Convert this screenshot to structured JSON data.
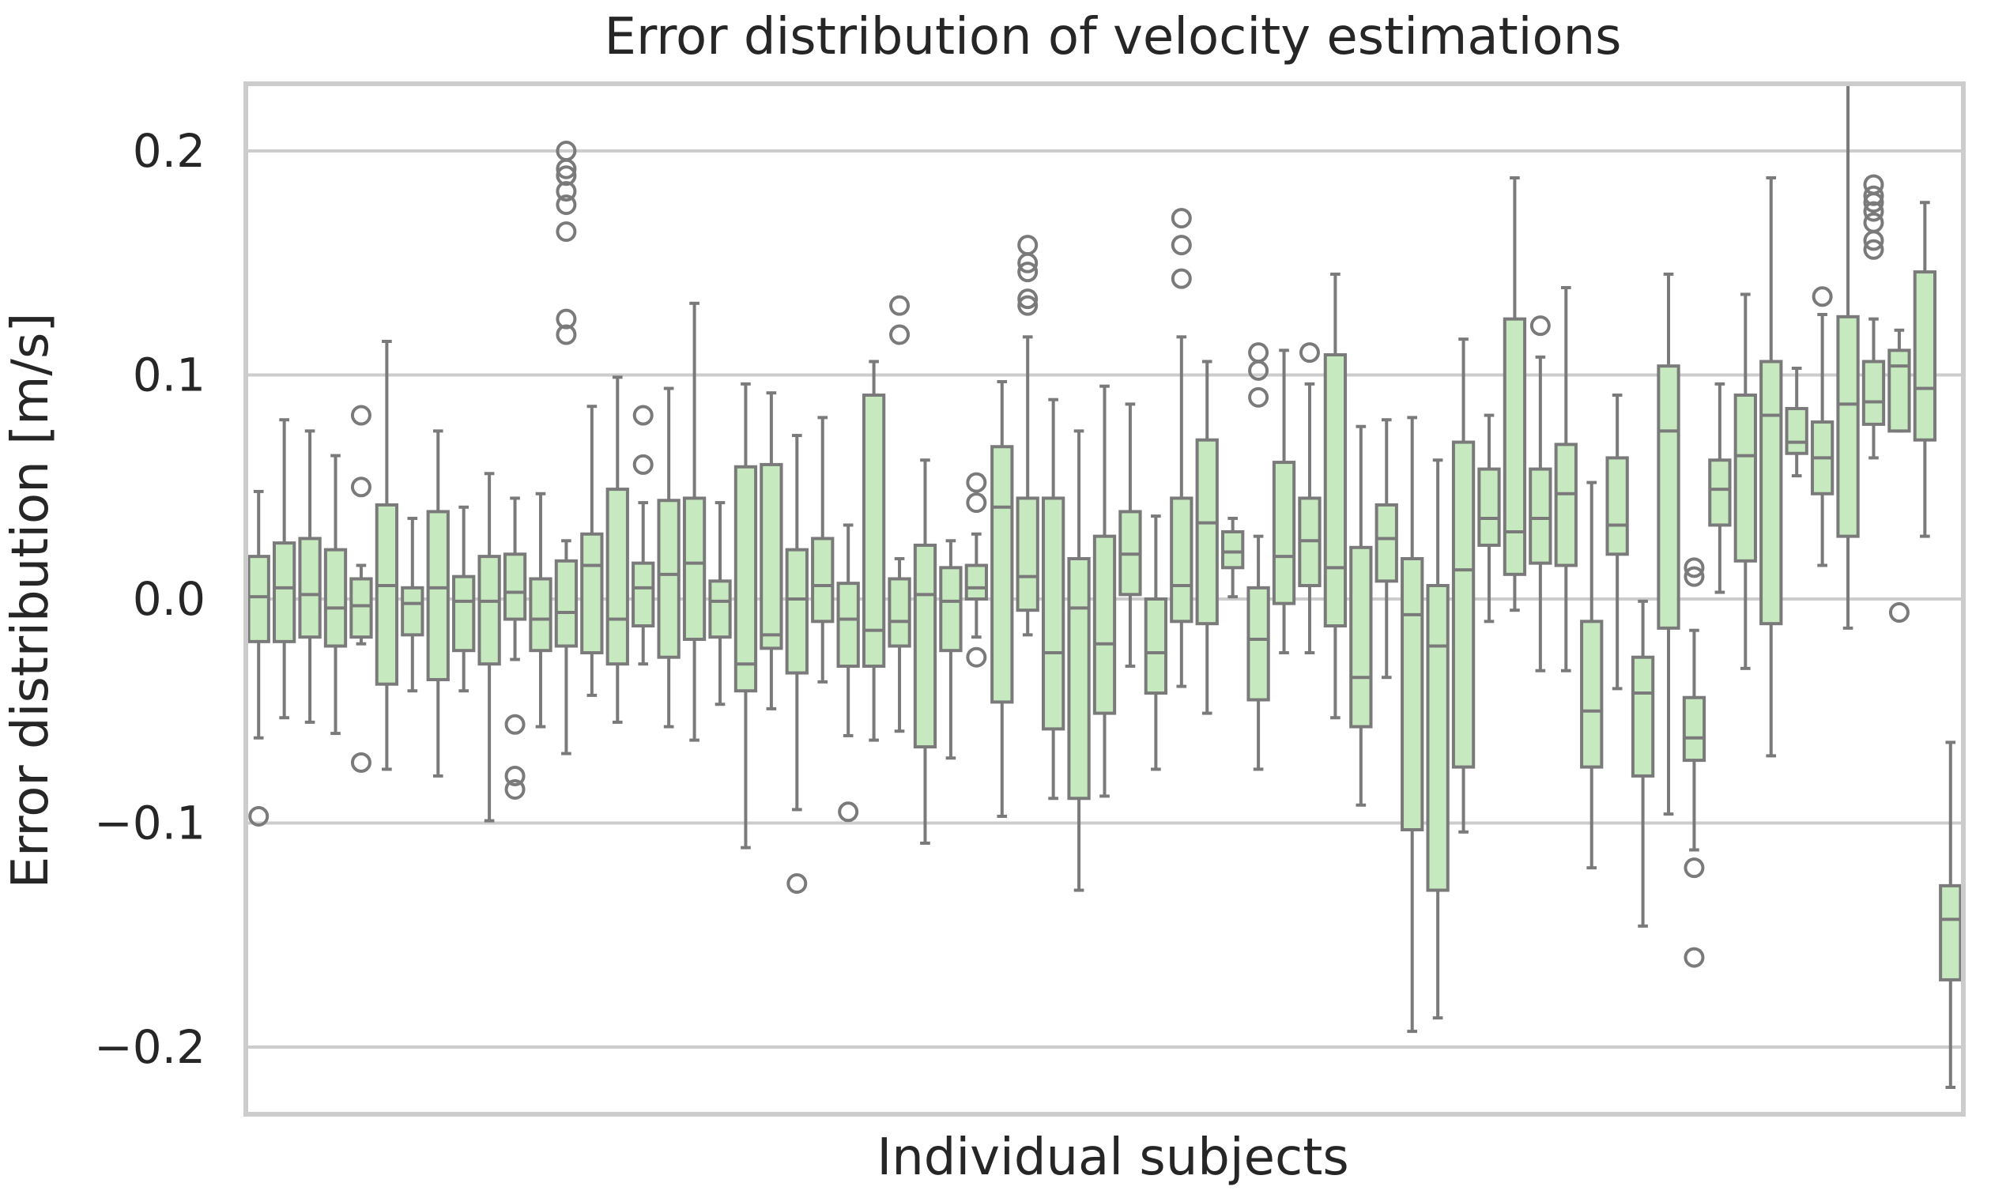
{
  "chart_data": {
    "type": "boxplot",
    "title": "Error distribution of velocity estimations",
    "xlabel": "Individual subjects",
    "ylabel": "Error distribution [m/s]",
    "ylim": [
      -0.23,
      0.23
    ],
    "yticks": [
      0.2,
      0.1,
      0.0,
      -0.1,
      -0.2
    ],
    "ytick_labels": [
      "0.2",
      "0.1",
      "0.0",
      "−0.1",
      "−0.2"
    ],
    "grid": true,
    "colors": {
      "box_fill": "#c7e9c0",
      "box_edge": "#7a7a7a",
      "grid": "#cccccc",
      "frame": "#cccccc"
    },
    "boxes": [
      {
        "wlo": -0.062,
        "q1": -0.019,
        "med": 0.001,
        "q3": 0.019,
        "whi": 0.048,
        "out": [
          -0.097
        ]
      },
      {
        "wlo": -0.053,
        "q1": -0.019,
        "med": 0.005,
        "q3": 0.025,
        "whi": 0.08,
        "out": []
      },
      {
        "wlo": -0.055,
        "q1": -0.017,
        "med": 0.002,
        "q3": 0.027,
        "whi": 0.075,
        "out": []
      },
      {
        "wlo": -0.06,
        "q1": -0.021,
        "med": -0.004,
        "q3": 0.022,
        "whi": 0.064,
        "out": []
      },
      {
        "wlo": -0.02,
        "q1": -0.017,
        "med": -0.003,
        "q3": 0.009,
        "whi": 0.015,
        "out": [
          0.082,
          0.05,
          -0.073
        ]
      },
      {
        "wlo": -0.076,
        "q1": -0.038,
        "med": 0.006,
        "q3": 0.042,
        "whi": 0.115,
        "out": []
      },
      {
        "wlo": -0.041,
        "q1": -0.016,
        "med": -0.002,
        "q3": 0.005,
        "whi": 0.036,
        "out": []
      },
      {
        "wlo": -0.079,
        "q1": -0.036,
        "med": 0.005,
        "q3": 0.039,
        "whi": 0.075,
        "out": []
      },
      {
        "wlo": -0.041,
        "q1": -0.023,
        "med": -0.001,
        "q3": 0.01,
        "whi": 0.041,
        "out": []
      },
      {
        "wlo": -0.099,
        "q1": -0.029,
        "med": -0.001,
        "q3": 0.019,
        "whi": 0.056,
        "out": []
      },
      {
        "wlo": -0.027,
        "q1": -0.009,
        "med": 0.003,
        "q3": 0.02,
        "whi": 0.045,
        "out": [
          -0.056,
          -0.079,
          -0.085
        ]
      },
      {
        "wlo": -0.057,
        "q1": -0.023,
        "med": -0.009,
        "q3": 0.009,
        "whi": 0.047,
        "out": []
      },
      {
        "wlo": -0.069,
        "q1": -0.021,
        "med": -0.006,
        "q3": 0.017,
        "whi": 0.026,
        "out": [
          0.2,
          0.192,
          0.189,
          0.182,
          0.176,
          0.164,
          0.125,
          0.118
        ]
      },
      {
        "wlo": -0.043,
        "q1": -0.024,
        "med": 0.015,
        "q3": 0.029,
        "whi": 0.086,
        "out": []
      },
      {
        "wlo": -0.055,
        "q1": -0.029,
        "med": -0.009,
        "q3": 0.049,
        "whi": 0.099,
        "out": []
      },
      {
        "wlo": -0.029,
        "q1": -0.012,
        "med": 0.005,
        "q3": 0.016,
        "whi": 0.043,
        "out": [
          0.082,
          0.06
        ]
      },
      {
        "wlo": -0.057,
        "q1": -0.026,
        "med": 0.011,
        "q3": 0.044,
        "whi": 0.094,
        "out": []
      },
      {
        "wlo": -0.063,
        "q1": -0.018,
        "med": 0.016,
        "q3": 0.045,
        "whi": 0.132,
        "out": []
      },
      {
        "wlo": -0.047,
        "q1": -0.017,
        "med": -0.001,
        "q3": 0.008,
        "whi": 0.043,
        "out": []
      },
      {
        "wlo": -0.111,
        "q1": -0.041,
        "med": -0.029,
        "q3": 0.059,
        "whi": 0.096,
        "out": []
      },
      {
        "wlo": -0.049,
        "q1": -0.022,
        "med": -0.016,
        "q3": 0.06,
        "whi": 0.092,
        "out": []
      },
      {
        "wlo": -0.094,
        "q1": -0.033,
        "med": 0.0,
        "q3": 0.022,
        "whi": 0.073,
        "out": [
          -0.127
        ]
      },
      {
        "wlo": -0.037,
        "q1": -0.01,
        "med": 0.006,
        "q3": 0.027,
        "whi": 0.081,
        "out": []
      },
      {
        "wlo": -0.061,
        "q1": -0.03,
        "med": -0.009,
        "q3": 0.007,
        "whi": 0.033,
        "out": [
          -0.095
        ]
      },
      {
        "wlo": -0.063,
        "q1": -0.03,
        "med": -0.014,
        "q3": 0.091,
        "whi": 0.106,
        "out": []
      },
      {
        "wlo": -0.059,
        "q1": -0.021,
        "med": -0.01,
        "q3": 0.009,
        "whi": 0.018,
        "out": [
          0.131,
          0.118
        ]
      },
      {
        "wlo": -0.109,
        "q1": -0.066,
        "med": 0.002,
        "q3": 0.024,
        "whi": 0.062,
        "out": []
      },
      {
        "wlo": -0.071,
        "q1": -0.023,
        "med": -0.001,
        "q3": 0.014,
        "whi": 0.026,
        "out": []
      },
      {
        "wlo": -0.017,
        "q1": 0.0,
        "med": 0.005,
        "q3": 0.015,
        "whi": 0.029,
        "out": [
          0.052,
          0.043,
          -0.026
        ]
      },
      {
        "wlo": -0.097,
        "q1": -0.046,
        "med": 0.041,
        "q3": 0.068,
        "whi": 0.097,
        "out": []
      },
      {
        "wlo": -0.016,
        "q1": -0.005,
        "med": 0.01,
        "q3": 0.045,
        "whi": 0.117,
        "out": [
          0.158,
          0.15,
          0.146,
          0.134,
          0.131
        ]
      },
      {
        "wlo": -0.089,
        "q1": -0.058,
        "med": -0.024,
        "q3": 0.045,
        "whi": 0.089,
        "out": []
      },
      {
        "wlo": -0.13,
        "q1": -0.089,
        "med": -0.004,
        "q3": 0.018,
        "whi": 0.075,
        "out": []
      },
      {
        "wlo": -0.088,
        "q1": -0.051,
        "med": -0.02,
        "q3": 0.028,
        "whi": 0.095,
        "out": []
      },
      {
        "wlo": -0.03,
        "q1": 0.002,
        "med": 0.02,
        "q3": 0.039,
        "whi": 0.087,
        "out": []
      },
      {
        "wlo": -0.076,
        "q1": -0.042,
        "med": -0.024,
        "q3": 0.0,
        "whi": 0.037,
        "out": []
      },
      {
        "wlo": -0.039,
        "q1": -0.01,
        "med": 0.006,
        "q3": 0.045,
        "whi": 0.117,
        "out": [
          0.17,
          0.158,
          0.143
        ]
      },
      {
        "wlo": -0.051,
        "q1": -0.011,
        "med": 0.034,
        "q3": 0.071,
        "whi": 0.106,
        "out": []
      },
      {
        "wlo": 0.001,
        "q1": 0.014,
        "med": 0.021,
        "q3": 0.03,
        "whi": 0.036,
        "out": []
      },
      {
        "wlo": -0.076,
        "q1": -0.045,
        "med": -0.018,
        "q3": 0.005,
        "whi": 0.028,
        "out": [
          0.11,
          0.102,
          0.09
        ]
      },
      {
        "wlo": -0.024,
        "q1": -0.002,
        "med": 0.019,
        "q3": 0.061,
        "whi": 0.111,
        "out": []
      },
      {
        "wlo": -0.024,
        "q1": 0.006,
        "med": 0.026,
        "q3": 0.045,
        "whi": 0.096,
        "out": [
          0.11
        ]
      },
      {
        "wlo": -0.053,
        "q1": -0.012,
        "med": 0.014,
        "q3": 0.109,
        "whi": 0.145,
        "out": []
      },
      {
        "wlo": -0.092,
        "q1": -0.057,
        "med": -0.035,
        "q3": 0.023,
        "whi": 0.077,
        "out": []
      },
      {
        "wlo": -0.035,
        "q1": 0.008,
        "med": 0.027,
        "q3": 0.042,
        "whi": 0.08,
        "out": []
      },
      {
        "wlo": -0.193,
        "q1": -0.103,
        "med": -0.007,
        "q3": 0.018,
        "whi": 0.081,
        "out": []
      },
      {
        "wlo": -0.187,
        "q1": -0.13,
        "med": -0.021,
        "q3": 0.006,
        "whi": 0.062,
        "out": []
      },
      {
        "wlo": -0.104,
        "q1": -0.075,
        "med": 0.013,
        "q3": 0.07,
        "whi": 0.116,
        "out": []
      },
      {
        "wlo": -0.01,
        "q1": 0.024,
        "med": 0.036,
        "q3": 0.058,
        "whi": 0.082,
        "out": []
      },
      {
        "wlo": -0.005,
        "q1": 0.011,
        "med": 0.03,
        "q3": 0.125,
        "whi": 0.188,
        "out": []
      },
      {
        "wlo": -0.032,
        "q1": 0.016,
        "med": 0.036,
        "q3": 0.058,
        "whi": 0.108,
        "out": [
          0.122
        ]
      },
      {
        "wlo": -0.032,
        "q1": 0.015,
        "med": 0.047,
        "q3": 0.069,
        "whi": 0.139,
        "out": []
      },
      {
        "wlo": -0.12,
        "q1": -0.075,
        "med": -0.05,
        "q3": -0.01,
        "whi": 0.052,
        "out": []
      },
      {
        "wlo": -0.04,
        "q1": 0.02,
        "med": 0.033,
        "q3": 0.063,
        "whi": 0.091,
        "out": []
      },
      {
        "wlo": -0.146,
        "q1": -0.079,
        "med": -0.042,
        "q3": -0.026,
        "whi": -0.001,
        "out": []
      },
      {
        "wlo": -0.096,
        "q1": -0.013,
        "med": 0.075,
        "q3": 0.104,
        "whi": 0.145,
        "out": []
      },
      {
        "wlo": -0.112,
        "q1": -0.072,
        "med": -0.062,
        "q3": -0.044,
        "whi": -0.014,
        "out": [
          0.014,
          0.01,
          -0.12,
          -0.16
        ]
      },
      {
        "wlo": 0.003,
        "q1": 0.033,
        "med": 0.049,
        "q3": 0.062,
        "whi": 0.096,
        "out": []
      },
      {
        "wlo": -0.031,
        "q1": 0.017,
        "med": 0.064,
        "q3": 0.091,
        "whi": 0.136,
        "out": []
      },
      {
        "wlo": -0.07,
        "q1": -0.011,
        "med": 0.082,
        "q3": 0.106,
        "whi": 0.188,
        "out": []
      },
      {
        "wlo": 0.055,
        "q1": 0.065,
        "med": 0.07,
        "q3": 0.085,
        "whi": 0.103,
        "out": []
      },
      {
        "wlo": 0.015,
        "q1": 0.047,
        "med": 0.063,
        "q3": 0.079,
        "whi": 0.127,
        "out": [
          0.135
        ]
      },
      {
        "wlo": -0.013,
        "q1": 0.028,
        "med": 0.087,
        "q3": 0.126,
        "whi": 0.23,
        "out": []
      },
      {
        "wlo": 0.063,
        "q1": 0.078,
        "med": 0.088,
        "q3": 0.106,
        "whi": 0.125,
        "out": [
          0.185,
          0.18,
          0.177,
          0.173,
          0.168,
          0.16,
          0.156
        ]
      },
      {
        "wlo": 0.075,
        "q1": 0.075,
        "med": 0.104,
        "q3": 0.111,
        "whi": 0.12,
        "out": [
          -0.006
        ]
      },
      {
        "wlo": 0.028,
        "q1": 0.071,
        "med": 0.094,
        "q3": 0.146,
        "whi": 0.177,
        "out": []
      },
      {
        "wlo": -0.218,
        "q1": -0.17,
        "med": -0.143,
        "q3": -0.128,
        "whi": -0.064,
        "out": []
      }
    ]
  }
}
